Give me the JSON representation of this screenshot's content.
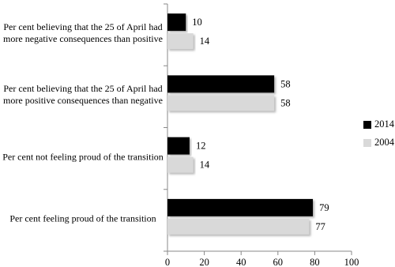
{
  "chart_data": {
    "type": "hbar",
    "categories": [
      "Per cent believing that the 25 of April had more negative consequences than positive",
      "Per cent believing that the 25 of April had more positive consequences than negative",
      "Per cent not feeling proud of the transition",
      "Per cent feeling proud of the transition"
    ],
    "series": [
      {
        "name": "2014",
        "color": "#000000",
        "values": [
          10,
          58,
          12,
          79
        ]
      },
      {
        "name": "2004",
        "color": "#d9d9d9",
        "values": [
          14,
          58,
          14,
          77
        ]
      }
    ],
    "xlim": [
      0,
      100
    ],
    "xticks": [
      0,
      20,
      40,
      60,
      80,
      100
    ]
  }
}
